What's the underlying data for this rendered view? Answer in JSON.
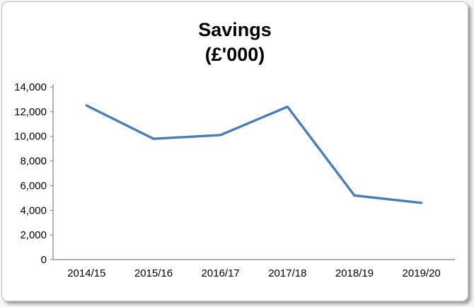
{
  "panel": {
    "background": "#ffffff",
    "border_color": "#c3c3c3"
  },
  "chart_data": {
    "type": "line",
    "title": "Savings",
    "subtitle": "(£'000)",
    "categories": [
      "2014/15",
      "2015/16",
      "2016/17",
      "2017/18",
      "2018/19",
      "2019/20"
    ],
    "series": [
      {
        "name": "Savings",
        "values": [
          12500,
          9800,
          10100,
          12400,
          5200,
          4600
        ],
        "color": "#4a7ebb"
      }
    ],
    "xlabel": "",
    "ylabel": "",
    "ylim": [
      0,
      14000
    ],
    "ytick_step": 2000,
    "ytick_labels": [
      "0",
      "2,000",
      "4,000",
      "6,000",
      "8,000",
      "10,000",
      "12,000",
      "14,000"
    ],
    "grid": false,
    "legend": false,
    "axis_color": "#808080",
    "tick_label_color": "#000000"
  }
}
